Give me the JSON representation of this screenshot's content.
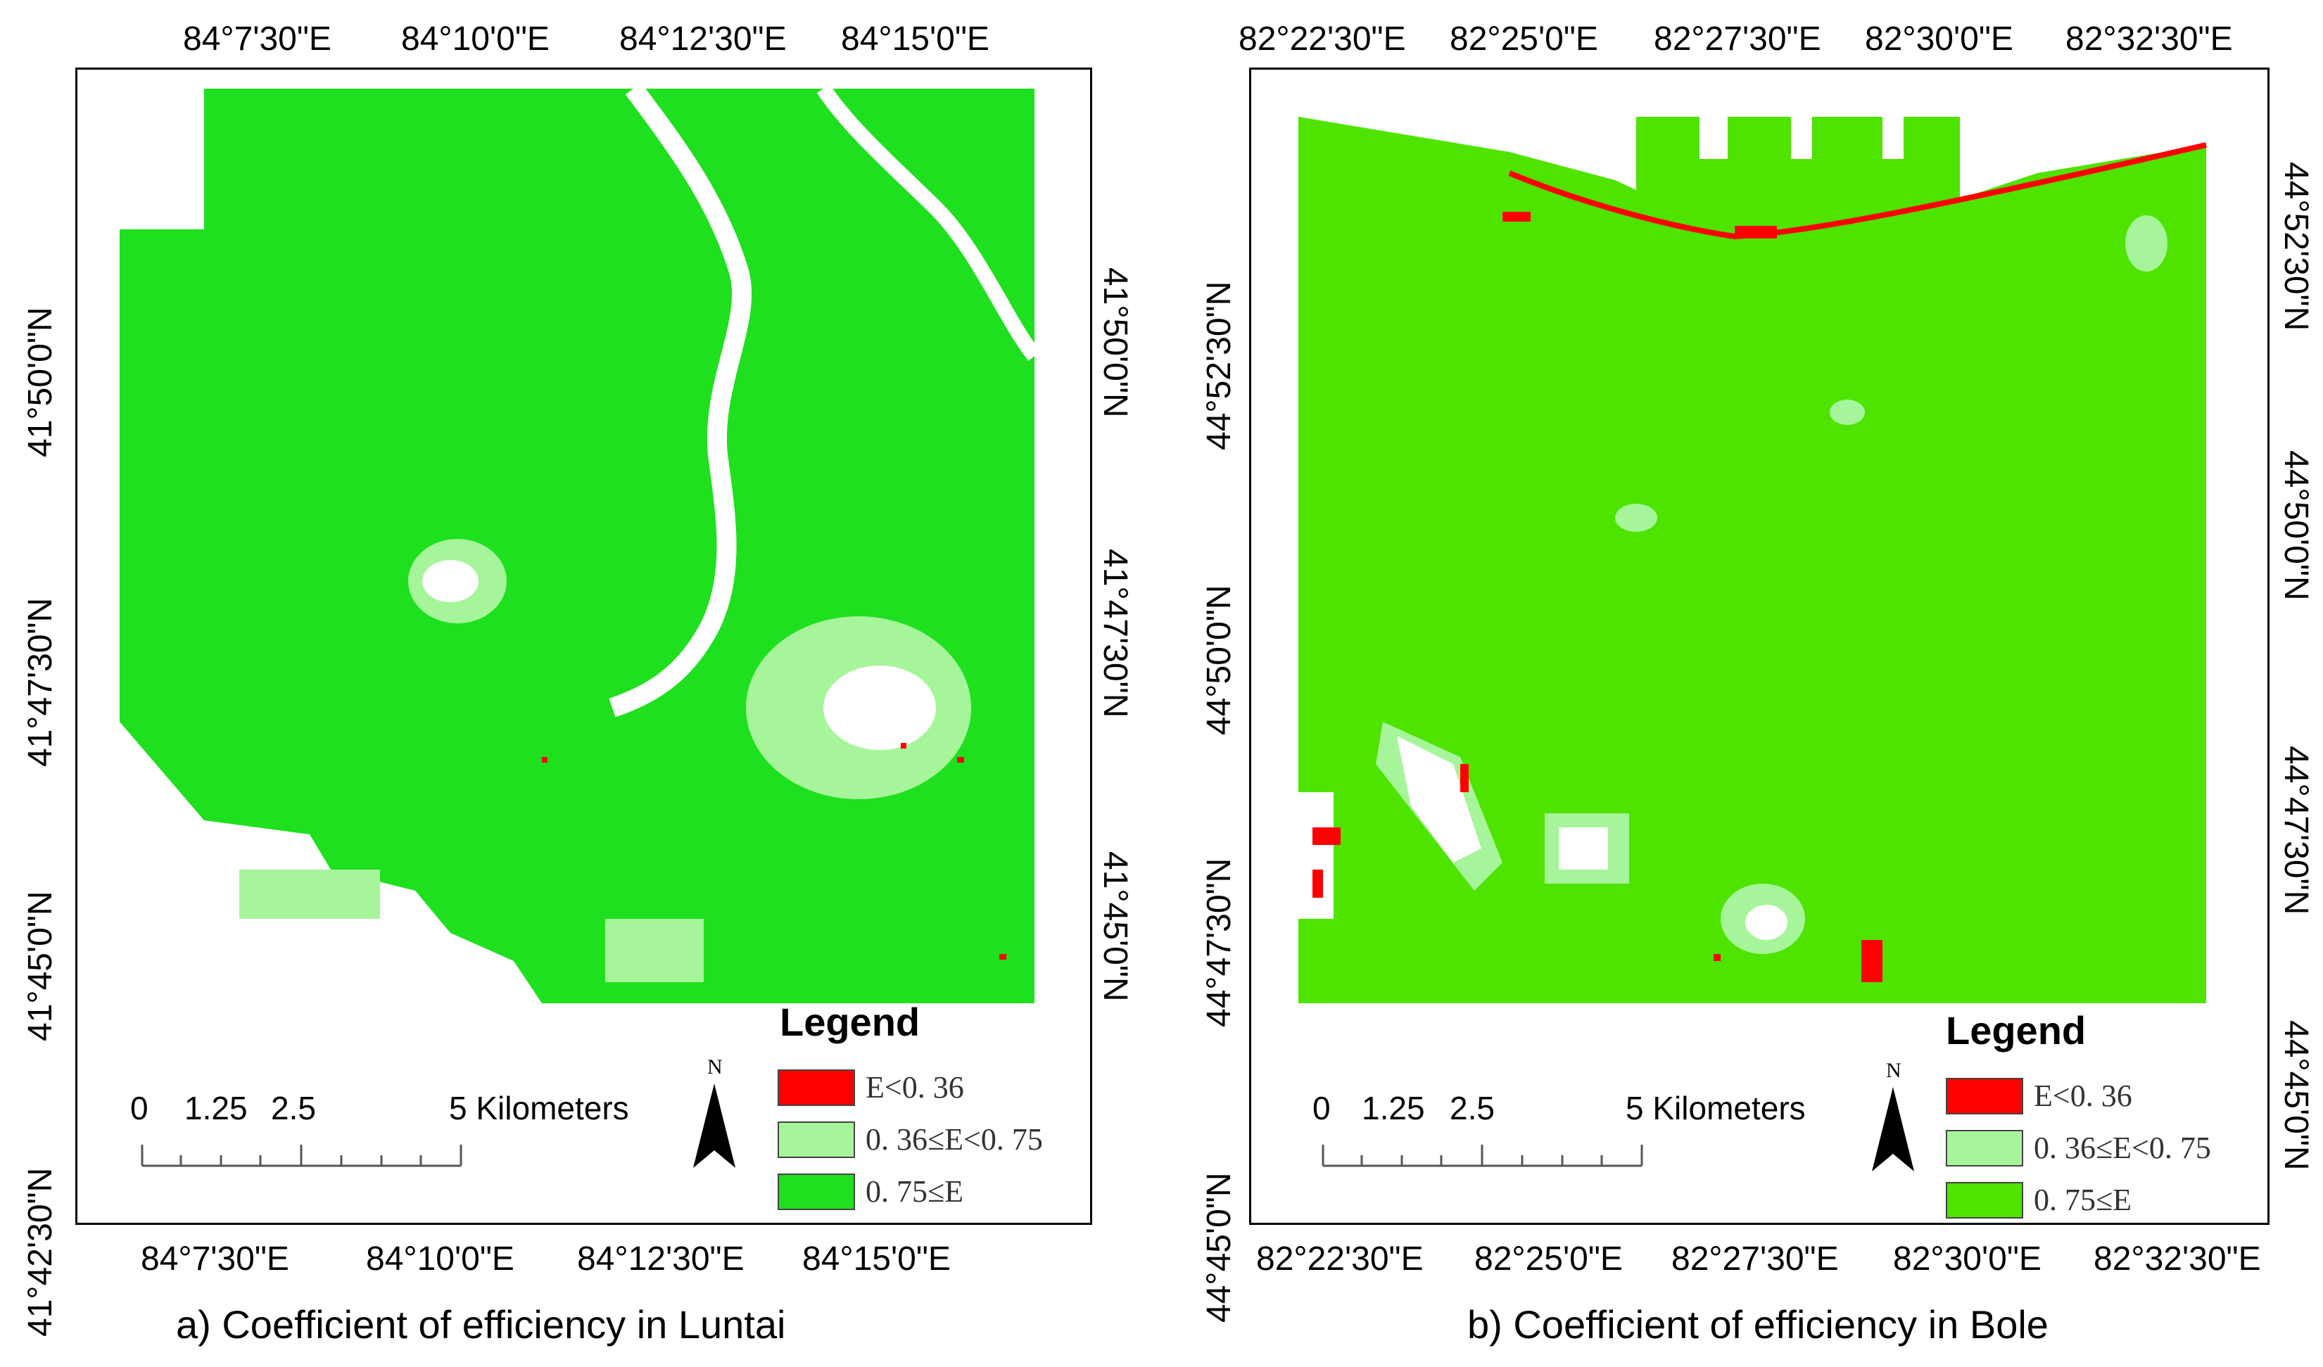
{
  "colors": {
    "class_low": "#ff0000",
    "class_mid": "#a6f59a",
    "class_high_a": "#1fe01f",
    "class_high_b": "#4fe300"
  },
  "panel_a": {
    "caption": "a) Coefficient of efficiency in Luntai",
    "top_ticks": [
      "84°7'30\"E",
      "84°10'0\"E",
      "84°12'30\"E",
      "84°15'0\"E"
    ],
    "bottom_ticks": [
      "84°7'30\"E",
      "84°10'0\"E",
      "84°12'30\"E",
      "84°15'0\"E"
    ],
    "left_ticks": [
      "41°50'0\"N",
      "41°47'30\"N",
      "41°45'0\"N",
      "41°42'30\"N"
    ],
    "right_ticks": [
      "41°50'0\"N",
      "41°47'30\"N",
      "41°45'0\"N"
    ],
    "legend": {
      "title": "Legend",
      "items": [
        {
          "label": "E<0. 36"
        },
        {
          "label": "0. 36≤E<0. 75"
        },
        {
          "label": "0. 75≤E"
        }
      ]
    },
    "scale": {
      "labels": [
        "0",
        "1.25",
        "2.5",
        "5 Kilometers"
      ]
    },
    "north": "N"
  },
  "panel_b": {
    "caption": "b) Coefficient of efficiency in Bole",
    "top_ticks": [
      "82°22'30\"E",
      "82°25'0\"E",
      "82°27'30\"E",
      "82°30'0\"E",
      "82°32'30\"E"
    ],
    "bottom_ticks": [
      "82°22'30\"E",
      "82°25'0\"E",
      "82°27'30\"E",
      "82°30'0\"E",
      "82°32'30\"E"
    ],
    "left_ticks": [
      "44°52'30\"N",
      "44°50'0\"N",
      "44°47'30\"N",
      "44°45'0\"N"
    ],
    "right_ticks": [
      "44°52'30\"N",
      "44°50'0\"N",
      "44°47'30\"N",
      "44°45'0\"N"
    ],
    "legend": {
      "title": "Legend",
      "items": [
        {
          "label": "E<0. 36"
        },
        {
          "label": "0. 36≤E<0. 75"
        },
        {
          "label": "0. 75≤E"
        }
      ]
    },
    "scale": {
      "labels": [
        "0",
        "1.25",
        "2.5",
        "5 Kilometers"
      ]
    },
    "north": "N"
  }
}
